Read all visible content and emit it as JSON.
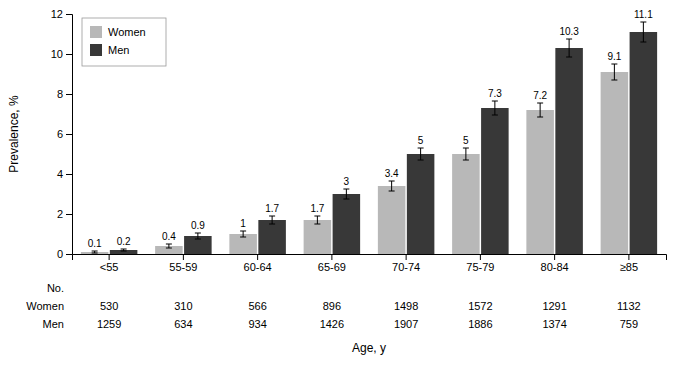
{
  "chart_data": {
    "type": "bar",
    "categories": [
      "<55",
      "55-59",
      "60-64",
      "65-69",
      "70-74",
      "75-79",
      "80-84",
      "≥85"
    ],
    "series": [
      {
        "name": "Women",
        "color": "#b8b8b8",
        "values": [
          0.1,
          0.4,
          1.0,
          1.7,
          3.4,
          5.0,
          7.2,
          9.1
        ],
        "errors": [
          0.05,
          0.1,
          0.15,
          0.2,
          0.25,
          0.3,
          0.35,
          0.4
        ],
        "counts": [
          530,
          310,
          566,
          896,
          1498,
          1572,
          1291,
          1132
        ]
      },
      {
        "name": "Men",
        "color": "#383838",
        "values": [
          0.2,
          0.9,
          1.7,
          3.0,
          5.0,
          7.3,
          10.3,
          11.1
        ],
        "errors": [
          0.05,
          0.15,
          0.2,
          0.25,
          0.3,
          0.35,
          0.45,
          0.5
        ],
        "counts": [
          1259,
          634,
          934,
          1426,
          1907,
          1886,
          1374,
          759
        ]
      }
    ],
    "counts_label": "No.",
    "ylim": [
      0,
      12
    ],
    "yticks": [
      0,
      2,
      4,
      6,
      8,
      10,
      12
    ],
    "ylabel": "Prevalence, %",
    "xlabel": "Age, y",
    "legend": "upper left",
    "data_labels": true,
    "grid": false
  }
}
